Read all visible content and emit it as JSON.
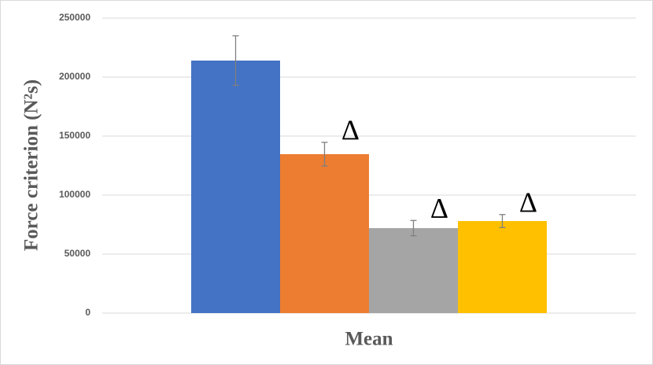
{
  "chart_data": {
    "type": "bar",
    "y_label": "Force criterion (N²s)",
    "categories": [
      "Mean"
    ],
    "series": [
      {
        "color": "#4472c4",
        "values": [
          214000
        ],
        "errors": [
          21000
        ]
      },
      {
        "color": "#ed7d31",
        "values": [
          134700
        ],
        "errors": [
          10000
        ],
        "annotation": "Δ"
      },
      {
        "color": "#a5a5a5",
        "values": [
          72000
        ],
        "errors": [
          6500
        ],
        "annotation": "Δ"
      },
      {
        "color": "#ffc000",
        "values": [
          78000
        ],
        "errors": [
          5500
        ],
        "annotation": "Δ"
      }
    ],
    "ylim": [
      0,
      250000
    ],
    "yticks": [
      0,
      50000,
      100000,
      150000,
      200000,
      250000
    ],
    "grid": true
  }
}
